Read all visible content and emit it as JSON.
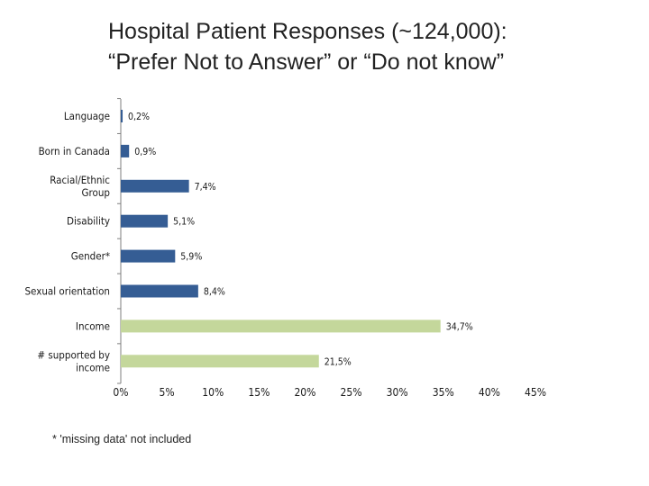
{
  "header": {
    "title_line1": "Hospital Patient Responses (~124,000):",
    "title_line2": "“Prefer Not to Answer” or “Do not know”"
  },
  "chart_data": {
    "type": "bar",
    "orientation": "horizontal",
    "categories": [
      [
        "Language"
      ],
      [
        "Born in Canada"
      ],
      [
        "Racial/Ethnic",
        "Group"
      ],
      [
        "Disability"
      ],
      [
        "Gender*"
      ],
      [
        "Sexual orientation"
      ],
      [
        "Income"
      ],
      [
        "# supported by",
        "income"
      ]
    ],
    "values": [
      0.2,
      0.9,
      7.4,
      5.1,
      5.9,
      8.4,
      34.7,
      21.5
    ],
    "value_labels": [
      "0,2%",
      "0,9%",
      "7,4%",
      "5,1%",
      "5,9%",
      "8,4%",
      "34,7%",
      "21,5%"
    ],
    "bar_colors": [
      "#355d94",
      "#355d94",
      "#355d94",
      "#355d94",
      "#355d94",
      "#355d94",
      "#c4d79b",
      "#c4d79b"
    ],
    "xlim": [
      0,
      45
    ],
    "xticks": [
      0,
      5,
      10,
      15,
      20,
      25,
      30,
      35,
      40,
      45
    ],
    "xtick_labels": [
      "0%",
      "5%",
      "10%",
      "15%",
      "20%",
      "25%",
      "30%",
      "35%",
      "40%",
      "45%"
    ],
    "grid": false,
    "title": "Hospital Patient Responses (~124,000): “Prefer Not to Answer” or “Do not know”"
  },
  "footnote": "* 'missing data' not included"
}
